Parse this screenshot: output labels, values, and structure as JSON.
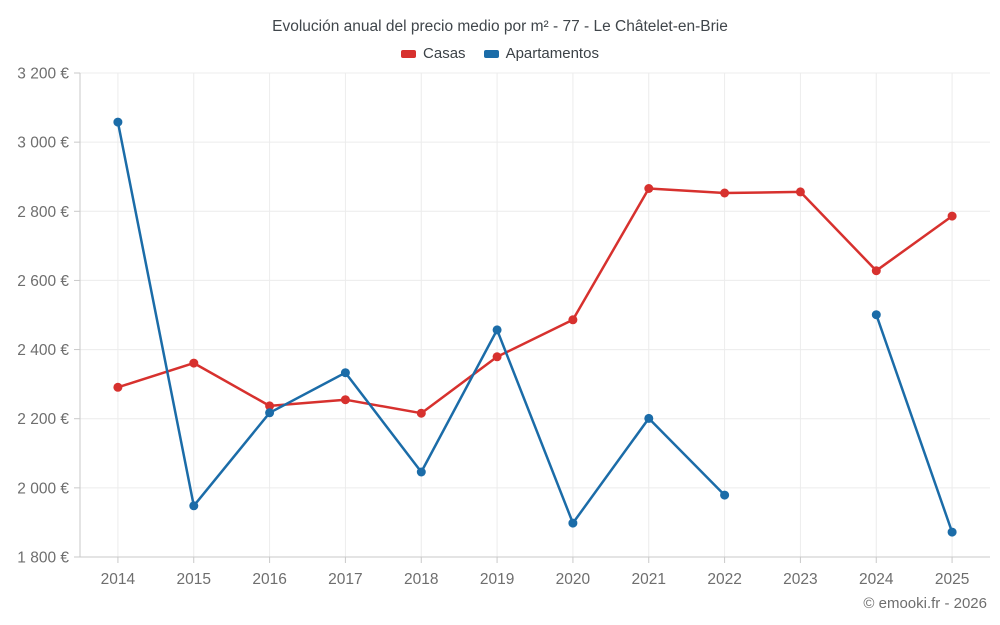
{
  "header": {
    "title": "Evolución anual del precio medio por m² - 77 - Le Châtelet-en-Brie"
  },
  "footer": {
    "credit": "© emooki.fr - 2026"
  },
  "colors": {
    "casas": "#d7312e",
    "apartamentos": "#1b6ca8",
    "gridline": "#ececec",
    "axis": "#c9c9c9",
    "tick_text": "#6e6e6e"
  },
  "chart_data": {
    "type": "line",
    "title": "Evolución anual del precio medio por m² - 77 - Le Châtelet-en-Brie",
    "xlabel": "",
    "ylabel": "",
    "categories": [
      "2014",
      "2015",
      "2016",
      "2017",
      "2018",
      "2019",
      "2020",
      "2021",
      "2022",
      "2023",
      "2024",
      "2025"
    ],
    "series": [
      {
        "name": "Casas",
        "color": "#d7312e",
        "values": [
          2291,
          2361,
          2237,
          2255,
          2216,
          2379,
          2486,
          2866,
          2853,
          2856,
          2628,
          2786
        ]
      },
      {
        "name": "Apartamentos",
        "color": "#1b6ca8",
        "values": [
          3058,
          1948,
          2217,
          2333,
          2046,
          2457,
          1898,
          2201,
          1979,
          null,
          2501,
          1872
        ]
      }
    ],
    "ylim": [
      1800,
      3200
    ],
    "yticks": [
      {
        "value": 1800,
        "label": "1 800 €"
      },
      {
        "value": 2000,
        "label": "2 000 €"
      },
      {
        "value": 2200,
        "label": "2 200 €"
      },
      {
        "value": 2400,
        "label": "2 400 €"
      },
      {
        "value": 2600,
        "label": "2 600 €"
      },
      {
        "value": 2800,
        "label": "2 800 €"
      },
      {
        "value": 3000,
        "label": "3 000 €"
      },
      {
        "value": 3200,
        "label": "3 200 €"
      }
    ],
    "grid": true,
    "legend_position": "top",
    "marker": "circle"
  }
}
